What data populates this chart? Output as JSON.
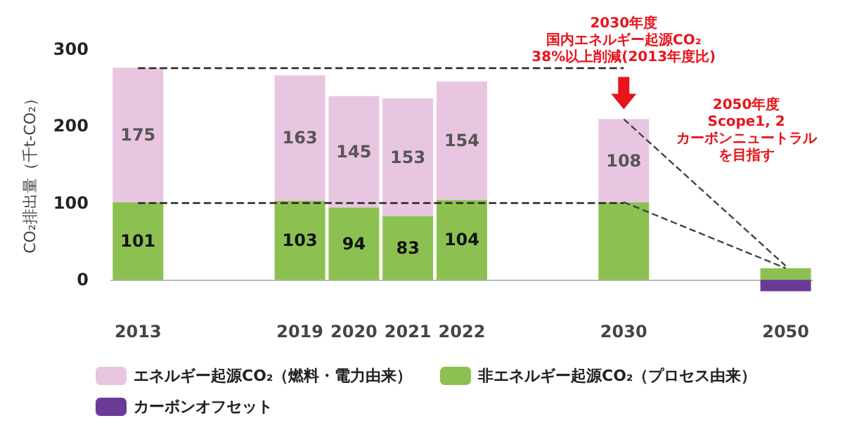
{
  "chart_data": {
    "type": "bar",
    "stacked": true,
    "ylabel": "CO₂排出量（千t-CO₂）",
    "categories": [
      "2013",
      null,
      null,
      "2019",
      "2020",
      "2021",
      "2022",
      null,
      null,
      "2030",
      null,
      null,
      "2050"
    ],
    "series": [
      {
        "name": "非エネルギー起源CO₂（プロセス由来）",
        "color": "#8cc152",
        "values": [
          101,
          null,
          null,
          103,
          94,
          83,
          104,
          null,
          null,
          101,
          null,
          null,
          15
        ],
        "value_labels": [
          "101",
          null,
          null,
          "103",
          "94",
          "83",
          "104",
          null,
          null,
          null,
          null,
          null,
          null
        ]
      },
      {
        "name": "エネルギー起源CO₂（燃料・電力由来）",
        "color": "#e8c6e1",
        "values": [
          175,
          null,
          null,
          163,
          145,
          153,
          154,
          null,
          null,
          108,
          null,
          null,
          null
        ],
        "value_labels": [
          "175",
          null,
          null,
          "163",
          "145",
          "153",
          "154",
          null,
          null,
          "108",
          null,
          null,
          null
        ]
      },
      {
        "name": "カーボンオフセット",
        "color": "#6b3a96",
        "values": [
          null,
          null,
          null,
          null,
          null,
          null,
          null,
          null,
          null,
          null,
          null,
          null,
          -15
        ]
      },
      {
        "type": "line",
        "color": "#444444",
        "line_style": "dashed",
        "marker": "none",
        "values": [
          null,
          null,
          null,
          null,
          null,
          null,
          null,
          null,
          null,
          209,
          null,
          null,
          18
        ]
      },
      {
        "type": "line",
        "color": "#444444",
        "line_style": "dashed",
        "marker": "none",
        "values": [
          null,
          null,
          null,
          null,
          null,
          null,
          null,
          null,
          null,
          101,
          null,
          null,
          15
        ]
      }
    ],
    "ylim": [
      -20,
      300
    ],
    "yticks": [
      0,
      100,
      200,
      300
    ],
    "grid": false,
    "legend": "bottom",
    "ref_lines": [
      {
        "axis": "y",
        "value": 276,
        "line_style": "dashed",
        "color": "#222222"
      },
      {
        "axis": "y",
        "value": 101,
        "line_style": "dashed",
        "color": "#222222"
      }
    ],
    "annotations": [
      "2030年度",
      "国内エネルギー起源CO₂",
      "38%以上削減(2013年度比)",
      "2050年度",
      "Scope1, 2",
      "カーボンニュートラル",
      "を目指す"
    ]
  }
}
